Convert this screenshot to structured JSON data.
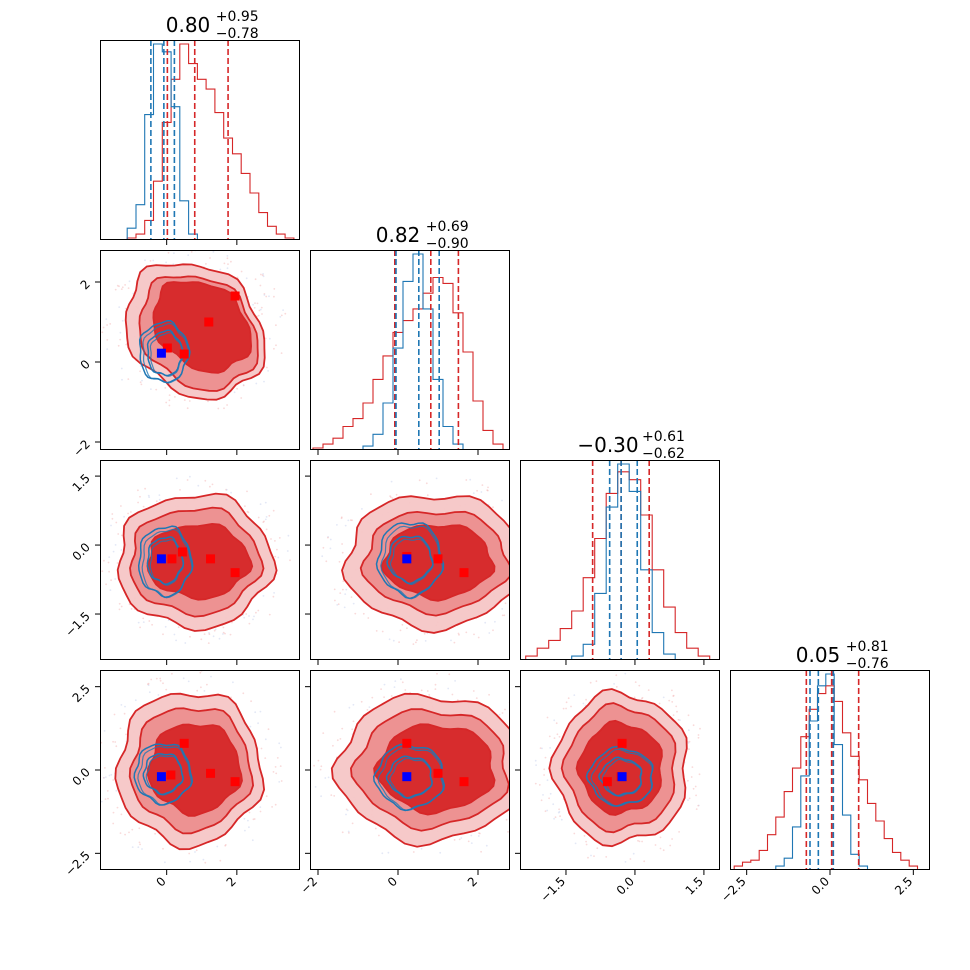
{
  "chart_data": {
    "type": "corner",
    "colors": {
      "red": "#d62728",
      "blue": "#1f77b4",
      "marker_red": "#ff0000",
      "marker_blue": "#0000ff"
    },
    "params": [
      {
        "ticks": [
          0,
          2
        ],
        "tick_labels": [
          "0",
          "2"
        ],
        "range": [
          -1.9,
          3.8
        ]
      },
      {
        "ticks": [
          -2,
          0,
          2
        ],
        "tick_labels": [
          "−2",
          "0",
          "2"
        ],
        "range": [
          -2.2,
          2.8
        ]
      },
      {
        "ticks": [
          -1.5,
          0.0,
          1.5
        ],
        "tick_labels": [
          "−1.5",
          "0.0",
          "1.5"
        ],
        "range": [
          -2.5,
          1.85
        ]
      },
      {
        "ticks": [
          -2.5,
          0.0,
          2.5
        ],
        "tick_labels": [
          "−2.5",
          "0.0",
          "2.5"
        ],
        "range": [
          -3.0,
          3.0
        ]
      }
    ],
    "titles": [
      {
        "median": "0.80",
        "plus": "+0.95",
        "minus": "−0.78"
      },
      {
        "median": "0.82",
        "plus": "+0.69",
        "minus": "−0.90"
      },
      {
        "median": "−0.30",
        "plus": "+0.61",
        "minus": "−0.62"
      },
      {
        "median": "0.05",
        "plus": "+0.81",
        "minus": "−0.76"
      }
    ],
    "quantiles": {
      "red": [
        [
          0.02,
          0.8,
          1.75
        ],
        [
          -0.08,
          0.82,
          1.51
        ],
        [
          -0.92,
          -0.3,
          0.31
        ],
        [
          -0.71,
          0.05,
          0.86
        ]
      ],
      "blue": [
        [
          -0.45,
          -0.08,
          0.22
        ],
        [
          -0.05,
          0.52,
          1.03
        ],
        [
          -0.55,
          -0.3,
          0.05
        ],
        [
          -0.6,
          -0.35,
          0.1
        ]
      ]
    },
    "histograms": {
      "red": [
        {
          "x": [
            -1.25,
            -1.0,
            -0.75,
            -0.5,
            -0.25,
            0.0,
            0.25,
            0.5,
            0.75,
            1.0,
            1.25,
            1.5,
            1.75,
            2.0,
            2.25,
            2.5,
            2.75,
            3.0,
            3.25,
            3.5
          ],
          "y": [
            0,
            0.01,
            0.03,
            0.1,
            0.3,
            0.6,
            0.82,
            1.0,
            0.9,
            0.82,
            0.77,
            0.65,
            0.52,
            0.44,
            0.34,
            0.24,
            0.14,
            0.07,
            0.03,
            0.01
          ]
        },
        {
          "x": [
            -2.0,
            -1.75,
            -1.5,
            -1.25,
            -1.0,
            -0.75,
            -0.5,
            -0.25,
            0.0,
            0.25,
            0.5,
            0.75,
            1.0,
            1.25,
            1.5,
            1.75,
            2.0,
            2.25,
            2.5
          ],
          "y": [
            0.01,
            0.03,
            0.06,
            0.12,
            0.16,
            0.24,
            0.36,
            0.48,
            0.6,
            0.66,
            0.72,
            0.8,
            0.88,
            0.85,
            0.7,
            0.5,
            0.25,
            0.1,
            0.03
          ]
        },
        {
          "x": [
            -2.25,
            -2.0,
            -1.75,
            -1.5,
            -1.25,
            -1.0,
            -0.75,
            -0.5,
            -0.25,
            0.0,
            0.25,
            0.5,
            0.75,
            1.0,
            1.25,
            1.5
          ],
          "y": [
            0.02,
            0.06,
            0.1,
            0.16,
            0.25,
            0.42,
            0.62,
            0.85,
            0.96,
            0.92,
            0.74,
            0.46,
            0.27,
            0.14,
            0.06,
            0.02
          ]
        },
        {
          "x": [
            -2.75,
            -2.5,
            -2.25,
            -2.0,
            -1.75,
            -1.5,
            -1.25,
            -1.0,
            -0.75,
            -0.5,
            -0.25,
            0.0,
            0.25,
            0.5,
            0.75,
            1.0,
            1.25,
            1.5,
            1.75,
            2.0,
            2.25,
            2.5
          ],
          "y": [
            0.02,
            0.04,
            0.05,
            0.1,
            0.18,
            0.27,
            0.4,
            0.52,
            0.68,
            0.82,
            0.9,
            0.94,
            0.86,
            0.7,
            0.58,
            0.46,
            0.34,
            0.25,
            0.16,
            0.09,
            0.05,
            0.02
          ]
        }
      ],
      "blue": [
        {
          "x": [
            -1.0,
            -0.75,
            -0.5,
            -0.25,
            0.0,
            0.25,
            0.5,
            0.75
          ],
          "y": [
            0.06,
            0.18,
            0.64,
            1.0,
            0.96,
            0.68,
            0.2,
            0.03
          ]
        },
        {
          "x": [
            -0.75,
            -0.5,
            -0.25,
            0.0,
            0.25,
            0.5,
            0.75,
            1.0,
            1.25,
            1.5
          ],
          "y": [
            0.02,
            0.08,
            0.24,
            0.52,
            0.86,
            1.0,
            0.72,
            0.36,
            0.12,
            0.03
          ]
        },
        {
          "x": [
            -1.25,
            -1.0,
            -0.75,
            -0.5,
            -0.25,
            0.0,
            0.25,
            0.5,
            0.75
          ],
          "y": [
            0.02,
            0.08,
            0.34,
            0.78,
            1.0,
            0.86,
            0.46,
            0.14,
            0.03
          ]
        },
        {
          "x": [
            -1.5,
            -1.25,
            -1.0,
            -0.75,
            -0.5,
            -0.25,
            0.0,
            0.25,
            0.5,
            0.75,
            1.0
          ],
          "y": [
            0.02,
            0.06,
            0.22,
            0.48,
            0.76,
            0.94,
            1.0,
            0.64,
            0.28,
            0.08,
            0.02
          ]
        }
      ]
    },
    "panels_2d": [
      {
        "row": 1,
        "col": 0,
        "red_contours": [
          {
            "c": [
              0.8,
              0.8
            ],
            "rx": 2.05,
            "ry": 1.6,
            "rot": -25
          },
          {
            "c": [
              0.9,
              0.75
            ],
            "rx": 1.75,
            "ry": 1.35,
            "rot": -25
          },
          {
            "c": [
              1.0,
              0.9
            ],
            "rx": 1.45,
            "ry": 1.05,
            "rot": -25
          }
        ],
        "blue_contours": [
          {
            "c": [
              -0.08,
              0.25
            ],
            "rx": 0.7,
            "ry": 0.75,
            "rot": 0
          },
          {
            "c": [
              -0.05,
              0.22
            ],
            "rx": 0.5,
            "ry": 0.55,
            "rot": 0
          }
        ],
        "red_markers": [
          [
            0.02,
            0.35
          ],
          [
            0.5,
            0.2
          ],
          [
            1.2,
            1.0
          ],
          [
            1.95,
            1.65
          ]
        ],
        "blue_marker": [
          -0.15,
          0.22
        ]
      },
      {
        "row": 2,
        "col": 0,
        "red_contours": [
          {
            "c": [
              0.8,
              -0.35
            ],
            "rx": 2.2,
            "ry": 1.45,
            "rot": 0
          },
          {
            "c": [
              0.8,
              -0.35
            ],
            "rx": 1.85,
            "ry": 1.15,
            "rot": 0
          },
          {
            "c": [
              0.9,
              -0.35
            ],
            "rx": 1.45,
            "ry": 0.8,
            "rot": 0
          }
        ],
        "blue_contours": [
          {
            "c": [
              -0.05,
              -0.35
            ],
            "rx": 0.75,
            "ry": 0.75,
            "rot": 0
          },
          {
            "c": [
              -0.05,
              -0.33
            ],
            "rx": 0.5,
            "ry": 0.5,
            "rot": 0
          }
        ],
        "red_markers": [
          [
            0.45,
            -0.15
          ],
          [
            1.25,
            -0.3
          ],
          [
            1.95,
            -0.6
          ],
          [
            0.15,
            -0.3
          ]
        ],
        "blue_marker": [
          -0.15,
          -0.3
        ]
      },
      {
        "row": 3,
        "col": 0,
        "red_contours": [
          {
            "c": [
              0.65,
              0.05
            ],
            "rx": 2.05,
            "ry": 2.3,
            "rot": 0
          },
          {
            "c": [
              0.7,
              0.05
            ],
            "rx": 1.7,
            "ry": 1.85,
            "rot": 0
          },
          {
            "c": [
              0.8,
              0.05
            ],
            "rx": 1.3,
            "ry": 1.35,
            "rot": 0
          }
        ],
        "blue_contours": [
          {
            "c": [
              -0.1,
              -0.1
            ],
            "rx": 0.8,
            "ry": 0.9,
            "rot": 0
          },
          {
            "c": [
              -0.1,
              -0.1
            ],
            "rx": 0.55,
            "ry": 0.6,
            "rot": 0
          }
        ],
        "red_markers": [
          [
            0.5,
            0.8
          ],
          [
            1.25,
            -0.1
          ],
          [
            1.95,
            -0.35
          ],
          [
            0.12,
            -0.15
          ]
        ],
        "blue_marker": [
          -0.15,
          -0.2
        ]
      },
      {
        "row": 2,
        "col": 1,
        "red_contours": [
          {
            "c": [
              0.9,
              -0.35
            ],
            "rx": 2.2,
            "ry": 1.45,
            "rot": 0
          },
          {
            "c": [
              0.95,
              -0.35
            ],
            "rx": 1.8,
            "ry": 1.1,
            "rot": 0
          },
          {
            "c": [
              1.0,
              -0.35
            ],
            "rx": 1.35,
            "ry": 0.8,
            "rot": 0
          }
        ],
        "blue_contours": [
          {
            "c": [
              0.3,
              -0.3
            ],
            "rx": 0.8,
            "ry": 0.8,
            "rot": 0
          },
          {
            "c": [
              0.3,
              -0.3
            ],
            "rx": 0.55,
            "ry": 0.5,
            "rot": 0
          }
        ],
        "red_markers": [
          [
            0.22,
            -0.25
          ],
          [
            1.0,
            -0.3
          ],
          [
            1.65,
            -0.6
          ]
        ],
        "blue_marker": [
          0.22,
          -0.3
        ]
      },
      {
        "row": 3,
        "col": 1,
        "red_contours": [
          {
            "c": [
              0.8,
              0.05
            ],
            "rx": 2.3,
            "ry": 2.2,
            "rot": 0
          },
          {
            "c": [
              0.85,
              0.05
            ],
            "rx": 1.9,
            "ry": 1.75,
            "rot": 0
          },
          {
            "c": [
              0.95,
              0.05
            ],
            "rx": 1.45,
            "ry": 1.3,
            "rot": 0
          }
        ],
        "blue_contours": [
          {
            "c": [
              0.3,
              -0.2
            ],
            "rx": 0.85,
            "ry": 0.95,
            "rot": 0
          },
          {
            "c": [
              0.3,
              -0.2
            ],
            "rx": 0.55,
            "ry": 0.6,
            "rot": 0
          }
        ],
        "red_markers": [
          [
            0.22,
            0.8
          ],
          [
            1.0,
            -0.1
          ],
          [
            1.65,
            -0.35
          ]
        ],
        "blue_marker": [
          0.22,
          -0.2
        ]
      },
      {
        "row": 3,
        "col": 2,
        "red_contours": [
          {
            "c": [
              -0.3,
              0.05
            ],
            "rx": 1.45,
            "ry": 2.25,
            "rot": 0
          },
          {
            "c": [
              -0.3,
              0.05
            ],
            "rx": 1.2,
            "ry": 1.85,
            "rot": 0
          },
          {
            "c": [
              -0.3,
              0.05
            ],
            "rx": 0.9,
            "ry": 1.35,
            "rot": 0
          }
        ],
        "blue_contours": [
          {
            "c": [
              -0.3,
              -0.2
            ],
            "rx": 0.7,
            "ry": 0.85,
            "rot": 0
          },
          {
            "c": [
              -0.3,
              -0.2
            ],
            "rx": 0.45,
            "ry": 0.55,
            "rot": 0
          }
        ],
        "red_markers": [
          [
            -0.6,
            -0.35
          ],
          [
            -0.28,
            0.8
          ],
          [
            -0.3,
            -0.2
          ]
        ],
        "blue_marker": [
          -0.28,
          -0.2
        ]
      }
    ]
  }
}
